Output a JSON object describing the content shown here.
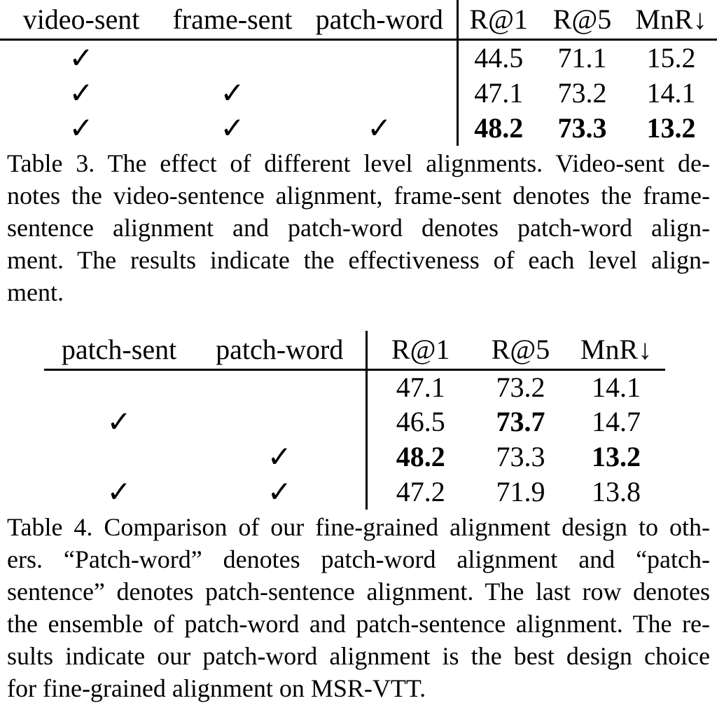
{
  "page": {
    "background": "#ffffff",
    "text_color": "#000000"
  },
  "glyphs": {
    "check": "✓"
  },
  "table3": {
    "columns": [
      "video-sent",
      "frame-sent",
      "patch-word"
    ],
    "metrics": [
      "R@1",
      "R@5",
      "MnR↓"
    ],
    "rows": [
      {
        "checks": [
          true,
          false,
          false
        ],
        "values": [
          "44.5",
          "71.1",
          "15.2"
        ],
        "bold": [
          false,
          false,
          false
        ]
      },
      {
        "checks": [
          true,
          true,
          false
        ],
        "values": [
          "47.1",
          "73.2",
          "14.1"
        ],
        "bold": [
          false,
          false,
          false
        ]
      },
      {
        "checks": [
          true,
          true,
          true
        ],
        "values": [
          "48.2",
          "73.3",
          "13.2"
        ],
        "bold": [
          true,
          true,
          true
        ]
      }
    ],
    "caption_lines": [
      "Table 3. The effect of different level alignments. Video-sent de-",
      "notes the video-sentence alignment, frame-sent denotes the frame-",
      "sentence alignment and patch-word denotes patch-word align-",
      "ment. The results indicate the effectiveness of each level align-",
      "ment."
    ]
  },
  "table4": {
    "columns": [
      "patch-sent",
      "patch-word"
    ],
    "metrics": [
      "R@1",
      "R@5",
      "MnR↓"
    ],
    "rows": [
      {
        "checks": [
          false,
          false
        ],
        "values": [
          "47.1",
          "73.2",
          "14.1"
        ],
        "bold": [
          false,
          false,
          false
        ]
      },
      {
        "checks": [
          true,
          false
        ],
        "values": [
          "46.5",
          "73.7",
          "14.7"
        ],
        "bold": [
          false,
          true,
          false
        ]
      },
      {
        "checks": [
          false,
          true
        ],
        "values": [
          "48.2",
          "73.3",
          "13.2"
        ],
        "bold": [
          true,
          false,
          true
        ]
      },
      {
        "checks": [
          true,
          true
        ],
        "values": [
          "47.2",
          "71.9",
          "13.8"
        ],
        "bold": [
          false,
          false,
          false
        ]
      }
    ],
    "caption_lines": [
      "Table 4. Comparison of our fine-grained alignment design to oth-",
      "ers. “Patch-word” denotes patch-word alignment and “patch-",
      "sentence” denotes patch-sentence alignment. The last row denotes",
      "the ensemble of patch-word and patch-sentence alignment. The re-",
      "sults indicate our patch-word alignment is the best design choice",
      "for fine-grained alignment on MSR-VTT."
    ]
  }
}
